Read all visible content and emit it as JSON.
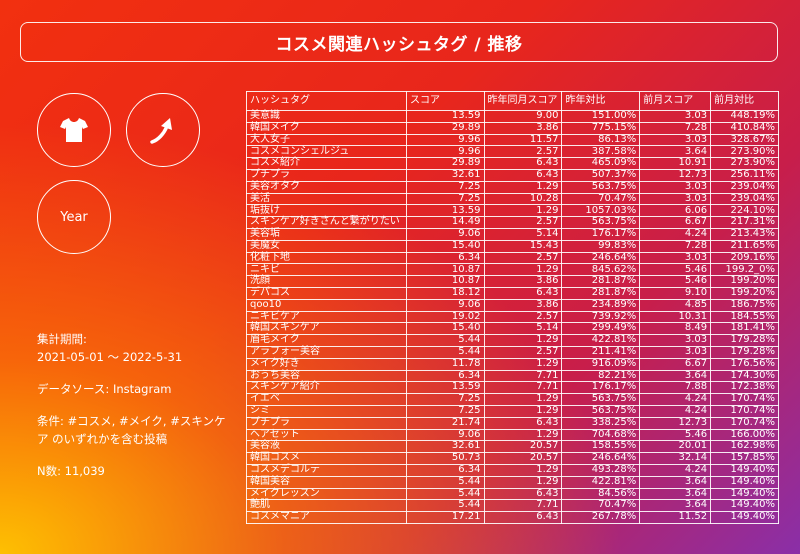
{
  "title": "コスメ関連ハッシュタグ / 推移",
  "icons": {
    "shirt": "t-shirt-icon",
    "trend": "trend-up-arrow-icon"
  },
  "year_label": "Year",
  "info": {
    "period_label": "集計期間:",
    "period_value": "2021-05-01 〜 2022-5-31",
    "source": "データソース: Instagram",
    "condition": "条件: #コスメ, #メイク, #スキンケア のいずれかを含む投稿",
    "n": "N数: 11,039"
  },
  "table": {
    "headers": [
      "ハッシュタグ",
      "スコア",
      "昨年同月スコア",
      "昨年対比",
      "前月スコア",
      "前月対比"
    ],
    "rows": [
      [
        "美意識",
        "13.59",
        "9.00",
        "151.00%",
        "3.03",
        "448.19%"
      ],
      [
        "韓国メイク",
        "29.89",
        "3.86",
        "775.15%",
        "7.28",
        "410.84%"
      ],
      [
        "大人女子",
        "9.96",
        "11.57",
        "86.13%",
        "3.03",
        "328.67%"
      ],
      [
        "コスメコンシェルジュ",
        "9.96",
        "2.57",
        "387.58%",
        "3.64",
        "273.90%"
      ],
      [
        "コスメ紹介",
        "29.89",
        "6.43",
        "465.09%",
        "10.91",
        "273.90%"
      ],
      [
        "プチプラ",
        "32.61",
        "6.43",
        "507.37%",
        "12.73",
        "256.11%"
      ],
      [
        "美容オタク",
        "7.25",
        "1.29",
        "563.75%",
        "3.03",
        "239.04%"
      ],
      [
        "美活",
        "7.25",
        "10.28",
        "70.47%",
        "3.03",
        "239.04%"
      ],
      [
        "垢抜け",
        "13.59",
        "1.29",
        "1057.03%",
        "6.06",
        "224.10%"
      ],
      [
        "スキンケア好きさんと繋がりたい",
        "14.49",
        "2.57",
        "563.75%",
        "6.67",
        "217.31%"
      ],
      [
        "美容垢",
        "9.06",
        "5.14",
        "176.17%",
        "4.24",
        "213.43%"
      ],
      [
        "美魔女",
        "15.40",
        "15.43",
        "99.83%",
        "7.28",
        "211.65%"
      ],
      [
        "化粧下地",
        "6.34",
        "2.57",
        "246.64%",
        "3.03",
        "209.16%"
      ],
      [
        "ニキビ",
        "10.87",
        "1.29",
        "845.62%",
        "5.46",
        "199.2_0%"
      ],
      [
        "洗顔",
        "10.87",
        "3.86",
        "281.87%",
        "5.46",
        "199.20%"
      ],
      [
        "デパコス",
        "18.12",
        "6.43",
        "281.87%",
        "9.10",
        "199.20%"
      ],
      [
        "qoo10",
        "9.06",
        "3.86",
        "234.89%",
        "4.85",
        "186.75%"
      ],
      [
        "ニキビケア",
        "19.02",
        "2.57",
        "739.92%",
        "10.31",
        "184.55%"
      ],
      [
        "韓国スキンケア",
        "15.40",
        "5.14",
        "299.49%",
        "8.49",
        "181.41%"
      ],
      [
        "眉毛メイク",
        "5.44",
        "1.29",
        "422.81%",
        "3.03",
        "179.28%"
      ],
      [
        "アラフォー美容",
        "5.44",
        "2.57",
        "211.41%",
        "3.03",
        "179.28%"
      ],
      [
        "メイク好き",
        "11.78",
        "1.29",
        "916.09%",
        "6.67",
        "176.56%"
      ],
      [
        "おうち美容",
        "6.34",
        "7.71",
        "82.21%",
        "3.64",
        "174.30%"
      ],
      [
        "スキンケア紹介",
        "13.59",
        "7.71",
        "176.17%",
        "7.88",
        "172.38%"
      ],
      [
        "イエベ",
        "7.25",
        "1.29",
        "563.75%",
        "4.24",
        "170.74%"
      ],
      [
        "シミ",
        "7.25",
        "1.29",
        "563.75%",
        "4.24",
        "170.74%"
      ],
      [
        "プチプラ",
        "21.74",
        "6.43",
        "338.25%",
        "12.73",
        "170.74%"
      ],
      [
        "ヘアセット",
        "9.06",
        "1.29",
        "704.68%",
        "5.46",
        "166.00%"
      ],
      [
        "美容液",
        "32.61",
        "20.57",
        "158.55%",
        "20.01",
        "162.98%"
      ],
      [
        "韓国コスメ",
        "50.73",
        "20.57",
        "246.64%",
        "32.14",
        "157.85%"
      ],
      [
        "コスメデコルテ",
        "6.34",
        "1.29",
        "493.28%",
        "4.24",
        "149.40%"
      ],
      [
        "韓国美容",
        "5.44",
        "1.29",
        "422.81%",
        "3.64",
        "149.40%"
      ],
      [
        "メイクレッスン",
        "5.44",
        "6.43",
        "84.56%",
        "3.64",
        "149.40%"
      ],
      [
        "艶肌",
        "5.44",
        "7.71",
        "70.47%",
        "3.64",
        "149.40%"
      ],
      [
        "コスメマニア",
        "17.21",
        "6.43",
        "267.78%",
        "11.52",
        "149.40%"
      ]
    ]
  }
}
